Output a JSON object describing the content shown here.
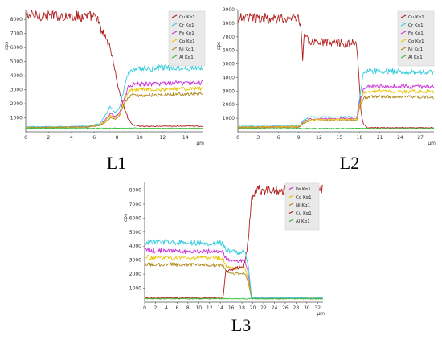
{
  "chart_data": [
    {
      "type": "line",
      "caption": "L1",
      "xlabel": "μm",
      "ylabel": "cps",
      "xlim": [
        0,
        15.5
      ],
      "ylim": [
        0,
        8700
      ],
      "xticks": [
        0,
        2,
        4,
        6,
        8,
        10,
        12,
        14
      ],
      "yticks": [
        1000,
        2000,
        3000,
        4000,
        5000,
        6000,
        7000,
        8000
      ],
      "legend_position": "top-right",
      "series": [
        {
          "name": "Cu Kα1",
          "color": "#b02020",
          "points": [
            [
              0,
              8300
            ],
            [
              6.2,
              8200
            ],
            [
              6.6,
              7200
            ],
            [
              7.0,
              6800
            ],
            [
              7.4,
              6000
            ],
            [
              7.8,
              4500
            ],
            [
              8.2,
              2800
            ],
            [
              8.6,
              1800
            ],
            [
              9.0,
              900
            ],
            [
              9.4,
              500
            ],
            [
              10,
              400
            ],
            [
              15.5,
              400
            ]
          ]
        },
        {
          "name": "Cr Kα1",
          "color": "#33ccdd",
          "points": [
            [
              0,
              350
            ],
            [
              5.5,
              400
            ],
            [
              6.5,
              600
            ],
            [
              7.0,
              1200
            ],
            [
              7.4,
              1800
            ],
            [
              7.8,
              1400
            ],
            [
              8.2,
              1600
            ],
            [
              8.6,
              3000
            ],
            [
              9.0,
              4200
            ],
            [
              9.4,
              4500
            ],
            [
              15.5,
              4600
            ]
          ]
        },
        {
          "name": "Fe Kα1",
          "color": "#cc33dd",
          "points": [
            [
              0,
              300
            ],
            [
              5.5,
              350
            ],
            [
              6.5,
              500
            ],
            [
              7.0,
              900
            ],
            [
              7.4,
              1300
            ],
            [
              7.8,
              1100
            ],
            [
              8.2,
              1300
            ],
            [
              8.6,
              2300
            ],
            [
              9.0,
              3200
            ],
            [
              9.4,
              3400
            ],
            [
              15.5,
              3500
            ]
          ]
        },
        {
          "name": "Co Kα1",
          "color": "#e8c400",
          "points": [
            [
              0,
              300
            ],
            [
              5.5,
              350
            ],
            [
              6.5,
              500
            ],
            [
              7.0,
              800
            ],
            [
              7.4,
              1200
            ],
            [
              7.8,
              1000
            ],
            [
              8.2,
              1200
            ],
            [
              8.6,
              2100
            ],
            [
              9.0,
              2900
            ],
            [
              9.4,
              3000
            ],
            [
              15.5,
              3100
            ]
          ]
        },
        {
          "name": "Ni Kα1",
          "color": "#b08a20",
          "points": [
            [
              0,
              300
            ],
            [
              5.5,
              350
            ],
            [
              6.5,
              450
            ],
            [
              7.0,
              700
            ],
            [
              7.4,
              1000
            ],
            [
              7.8,
              900
            ],
            [
              8.2,
              1100
            ],
            [
              8.6,
              1900
            ],
            [
              9.0,
              2500
            ],
            [
              9.4,
              2600
            ],
            [
              15.5,
              2700
            ]
          ]
        },
        {
          "name": "Al Kα1",
          "color": "#33bb33",
          "points": [
            [
              0,
              250
            ],
            [
              15.5,
              250
            ]
          ]
        }
      ]
    },
    {
      "type": "line",
      "caption": "L2",
      "xlabel": "μm",
      "ylabel": "cps",
      "xlim": [
        0,
        29
      ],
      "ylim": [
        0,
        9000
      ],
      "xticks": [
        0,
        3,
        6,
        9,
        12,
        15,
        18,
        21,
        24,
        27
      ],
      "yticks": [
        1000,
        2000,
        3000,
        4000,
        5000,
        6000,
        7000,
        8000,
        9000
      ],
      "legend_position": "top-right",
      "series": [
        {
          "name": "Cu Kα1",
          "color": "#b02020",
          "points": [
            [
              0,
              8400
            ],
            [
              9.0,
              8300
            ],
            [
              9.4,
              7600
            ],
            [
              9.6,
              5000
            ],
            [
              9.8,
              7200
            ],
            [
              10.5,
              6600
            ],
            [
              17.5,
              6500
            ],
            [
              17.8,
              5000
            ],
            [
              18.2,
              1500
            ],
            [
              18.6,
              500
            ],
            [
              19.2,
              300
            ],
            [
              29,
              300
            ]
          ]
        },
        {
          "name": "Cr Kα1",
          "color": "#33ccdd",
          "points": [
            [
              0,
              400
            ],
            [
              9.2,
              450
            ],
            [
              9.6,
              800
            ],
            [
              10.5,
              1100
            ],
            [
              17.6,
              1100
            ],
            [
              18.0,
              2500
            ],
            [
              18.6,
              4300
            ],
            [
              19.5,
              4500
            ],
            [
              29,
              4400
            ]
          ]
        },
        {
          "name": "Fe Kα1",
          "color": "#cc33dd",
          "points": [
            [
              0,
              350
            ],
            [
              9.2,
              400
            ],
            [
              9.6,
              700
            ],
            [
              10.5,
              950
            ],
            [
              17.6,
              1000
            ],
            [
              18.0,
              2200
            ],
            [
              18.6,
              3200
            ],
            [
              19.5,
              3400
            ],
            [
              29,
              3300
            ]
          ]
        },
        {
          "name": "Co Kα1",
          "color": "#e8c400",
          "points": [
            [
              0,
              350
            ],
            [
              9.2,
              400
            ],
            [
              9.6,
              650
            ],
            [
              10.5,
              900
            ],
            [
              17.6,
              950
            ],
            [
              18.0,
              2000
            ],
            [
              18.6,
              2900
            ],
            [
              19.5,
              3000
            ],
            [
              29,
              2950
            ]
          ]
        },
        {
          "name": "Ni Kα1",
          "color": "#b08a20",
          "points": [
            [
              0,
              300
            ],
            [
              9.2,
              350
            ],
            [
              9.6,
              600
            ],
            [
              10.5,
              800
            ],
            [
              17.6,
              850
            ],
            [
              18.0,
              1800
            ],
            [
              18.6,
              2500
            ],
            [
              19.5,
              2600
            ],
            [
              29,
              2550
            ]
          ]
        },
        {
          "name": "Al Kα1",
          "color": "#33bb33",
          "points": [
            [
              0,
              250
            ],
            [
              29,
              250
            ]
          ]
        }
      ]
    },
    {
      "type": "line",
      "caption": "L3",
      "xlabel": "μm",
      "ylabel": "cps",
      "xlim": [
        0,
        33
      ],
      "ylim": [
        0,
        8600
      ],
      "xticks": [
        0,
        2,
        4,
        6,
        8,
        10,
        12,
        14,
        16,
        18,
        20,
        22,
        24,
        26,
        28,
        30,
        32
      ],
      "yticks": [
        1000,
        2000,
        3000,
        4000,
        5000,
        6000,
        7000,
        8000
      ],
      "legend_position": "top-right",
      "series": [
        {
          "name": "Fe Kα1",
          "color": "#cc33dd",
          "points": [
            [
              0,
              3700
            ],
            [
              14.5,
              3600
            ],
            [
              15.2,
              3000
            ],
            [
              17.5,
              2900
            ],
            [
              18.5,
              3000
            ],
            [
              19.2,
              2000
            ],
            [
              19.8,
              300
            ],
            [
              33,
              300
            ]
          ]
        },
        {
          "name": "Co Kα1",
          "color": "#e8c400",
          "points": [
            [
              0,
              3200
            ],
            [
              14.5,
              3150
            ],
            [
              15.2,
              2500
            ],
            [
              17.5,
              2400
            ],
            [
              18.5,
              2500
            ],
            [
              19.2,
              1600
            ],
            [
              19.8,
              300
            ],
            [
              33,
              300
            ]
          ]
        },
        {
          "name": "Ni Kα1",
          "color": "#b08a20",
          "points": [
            [
              0,
              2700
            ],
            [
              14.5,
              2650
            ],
            [
              15.2,
              2100
            ],
            [
              17.5,
              2000
            ],
            [
              18.5,
              2100
            ],
            [
              19.2,
              1400
            ],
            [
              19.8,
              250
            ],
            [
              33,
              250
            ]
          ]
        },
        {
          "name": "Cu Kα1",
          "color": "#b02020",
          "points": [
            [
              0,
              300
            ],
            [
              14.5,
              300
            ],
            [
              15.0,
              2200
            ],
            [
              17.5,
              2500
            ],
            [
              18.5,
              2700
            ],
            [
              19.2,
              4500
            ],
            [
              19.8,
              7500
            ],
            [
              20.5,
              8000
            ],
            [
              33,
              8100
            ]
          ]
        },
        {
          "name": "Al Kα1",
          "color": "#33bb33",
          "points": [
            [
              0,
              250
            ],
            [
              33,
              250
            ]
          ]
        },
        {
          "name": "",
          "color": "#33ccdd",
          "points": [
            [
              0,
              4300
            ],
            [
              14.5,
              4200
            ],
            [
              15.2,
              3700
            ],
            [
              17.5,
              3500
            ],
            [
              18.5,
              3700
            ],
            [
              19.2,
              2500
            ],
            [
              19.8,
              300
            ],
            [
              33,
              300
            ]
          ]
        }
      ]
    }
  ]
}
